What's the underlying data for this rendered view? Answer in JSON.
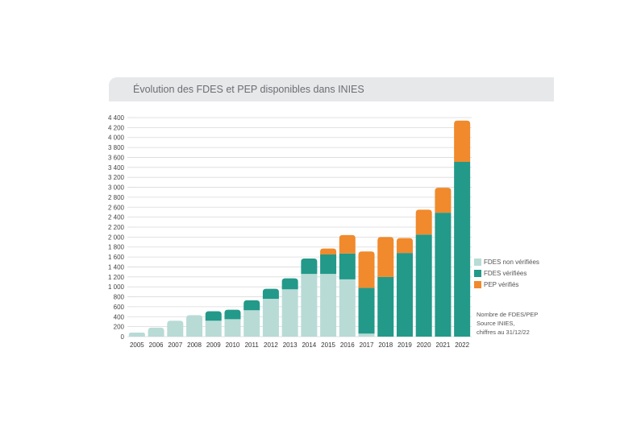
{
  "chart_data": {
    "type": "bar",
    "stacked": true,
    "title": "Évolution des FDES et PEP disponibles dans INIES",
    "categories": [
      "2005",
      "2006",
      "2007",
      "2008",
      "2009",
      "2010",
      "2011",
      "2012",
      "2013",
      "2014",
      "2015",
      "2016",
      "2017",
      "2018",
      "2019",
      "2020",
      "2021",
      "2022"
    ],
    "series": [
      {
        "name": "FDES non vérifiées",
        "color": "#b8dbd6",
        "values": [
          80,
          180,
          320,
          430,
          320,
          350,
          530,
          760,
          950,
          1260,
          1260,
          1150,
          60,
          0,
          0,
          0,
          0,
          0
        ]
      },
      {
        "name": "FDES vérifiées",
        "color": "#23998a",
        "values": [
          0,
          0,
          0,
          0,
          190,
          190,
          200,
          200,
          220,
          310,
          390,
          520,
          920,
          1200,
          1680,
          2050,
          2490,
          3510
        ]
      },
      {
        "name": "PEP vérifiés",
        "color": "#f08a2c",
        "values": [
          0,
          0,
          0,
          0,
          0,
          0,
          0,
          0,
          0,
          0,
          120,
          370,
          730,
          800,
          300,
          500,
          500,
          830
        ]
      }
    ],
    "ylim": [
      0,
      4400
    ],
    "yticks": [
      0,
      200,
      400,
      600,
      800,
      1000,
      1200,
      1400,
      1600,
      1800,
      2000,
      2200,
      2400,
      2600,
      2800,
      3000,
      3200,
      3400,
      3600,
      3800,
      4000,
      4200,
      4400
    ],
    "ytick_labels": [
      "0",
      "200",
      "400",
      "600",
      "800",
      "1 000",
      "1 200",
      "1 400",
      "1 600",
      "1 800",
      "2 000",
      "2 200",
      "2 400",
      "2 600",
      "2 800",
      "3 000",
      "3 200",
      "3 400",
      "3 600",
      "3 800",
      "4 000",
      "4 200",
      "4 400"
    ],
    "grid": true,
    "legend": "right"
  },
  "note": [
    "Nombre de FDES/PEP",
    "Source INIES,",
    "chiffres au 31/12/22"
  ],
  "colors": {
    "title_bar": "#e7e8ea",
    "grid": "#d9d9d9"
  }
}
